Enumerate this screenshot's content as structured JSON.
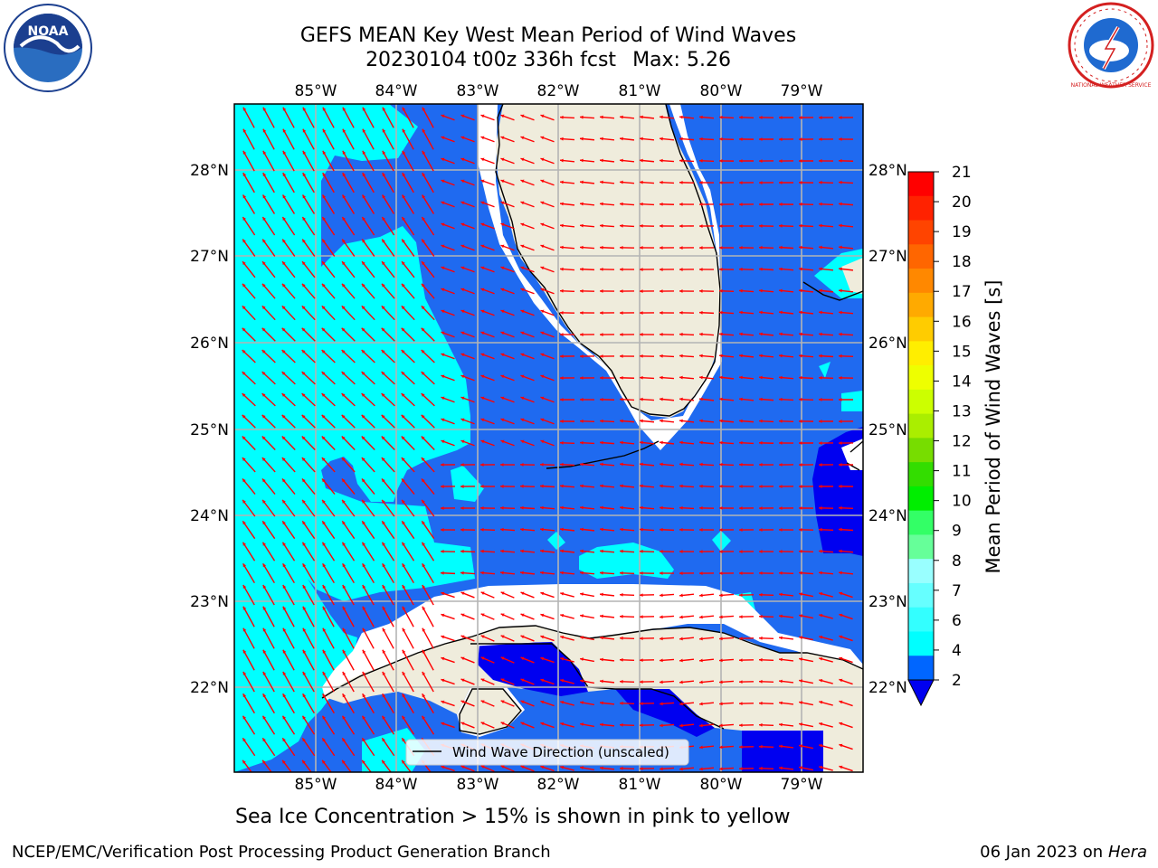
{
  "title": {
    "line1": "GEFS MEAN Key West Mean Period of Wind Waves",
    "run": "20230104 t00z 336h fcst",
    "max_label": "Max: 5.26"
  },
  "map": {
    "lon_labels": [
      "85°W",
      "84°W",
      "83°W",
      "82°W",
      "81°W",
      "80°W",
      "79°W"
    ],
    "lat_labels": [
      "28°N",
      "27°N",
      "26°N",
      "25°N",
      "24°N",
      "23°N",
      "22°N"
    ],
    "legend_label": "Wind Wave Direction (unscaled)",
    "colors": {
      "band_2_4": "#1f6af0",
      "band_4_6": "#00ffff",
      "below_2": "#0000f0",
      "land": "#efecdc",
      "arrow": "#ff0000",
      "grid": "#b4b4b4"
    }
  },
  "colorbar": {
    "label": "Mean Period of Wind Waves [s]",
    "ticks": [
      "2",
      "4",
      "6",
      "7",
      "8",
      "9",
      "10",
      "11",
      "12",
      "13",
      "14",
      "15",
      "16",
      "17",
      "18",
      "19",
      "20",
      "21"
    ],
    "colors": [
      "#0066ff",
      "#00ffff",
      "#33ffff",
      "#66ffff",
      "#99ffff",
      "#66ff99",
      "#33ff66",
      "#00ee00",
      "#33dd00",
      "#77dd00",
      "#aaee00",
      "#ccff00",
      "#eeff00",
      "#ffee00",
      "#ffcc00",
      "#ffaa00",
      "#ff8800",
      "#ff6600",
      "#ff4400",
      "#ff2200",
      "#ff0000"
    ],
    "under_color": "#0000f0"
  },
  "footnote": "Sea Ice Concentration > 15% is shown in pink to yellow",
  "credit_left": "NCEP/EMC/Verification Post Processing Product Generation Branch",
  "credit_date": "06 Jan 2023 on",
  "credit_host": "Hera",
  "logos": {
    "left_text": "NOAA",
    "right_text": "NATIONAL WEATHER SERVICE"
  }
}
